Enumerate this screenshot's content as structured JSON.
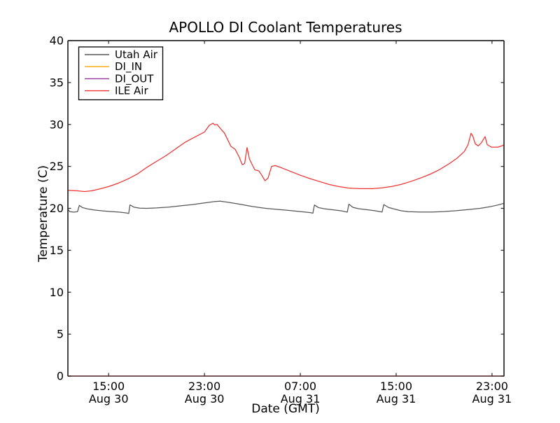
{
  "chart_data": {
    "type": "line",
    "title": "APOLLO DI Coolant Temperatures",
    "xlabel": "Date (GMT)",
    "ylabel": "Temperature (C)",
    "grid": false,
    "legend_position": "upper-left",
    "x_unit": "hours since Aug 30 00:00 GMT",
    "xlim": [
      11.6,
      48.0
    ],
    "ylim": [
      0,
      40
    ],
    "yticks": [
      0,
      5,
      10,
      15,
      20,
      25,
      30,
      35,
      40
    ],
    "xticks": [
      {
        "t": 15,
        "time": "15:00",
        "date": "Aug 30"
      },
      {
        "t": 23,
        "time": "23:00",
        "date": "Aug 30"
      },
      {
        "t": 31,
        "time": "07:00",
        "date": "Aug 31"
      },
      {
        "t": 39,
        "time": "15:00",
        "date": "Aug 31"
      },
      {
        "t": 47,
        "time": "23:00",
        "date": "Aug 31"
      }
    ],
    "series": [
      {
        "name": "Utah Air",
        "color": "#565656",
        "points": [
          [
            11.6,
            19.9
          ],
          [
            11.75,
            19.6
          ],
          [
            12.1,
            19.55
          ],
          [
            12.4,
            19.6
          ],
          [
            12.55,
            20.35
          ],
          [
            12.8,
            20.1
          ],
          [
            13.2,
            19.95
          ],
          [
            13.8,
            19.8
          ],
          [
            14.5,
            19.7
          ],
          [
            15.2,
            19.62
          ],
          [
            15.9,
            19.55
          ],
          [
            16.5,
            19.45
          ],
          [
            16.68,
            19.4
          ],
          [
            16.78,
            20.42
          ],
          [
            17.1,
            20.15
          ],
          [
            17.6,
            20.02
          ],
          [
            18.2,
            20.0
          ],
          [
            19.0,
            20.05
          ],
          [
            20.0,
            20.15
          ],
          [
            21.0,
            20.3
          ],
          [
            22.0,
            20.45
          ],
          [
            23.0,
            20.65
          ],
          [
            23.8,
            20.8
          ],
          [
            24.3,
            20.85
          ],
          [
            25.0,
            20.72
          ],
          [
            26.0,
            20.48
          ],
          [
            27.0,
            20.22
          ],
          [
            28.0,
            20.02
          ],
          [
            29.0,
            19.88
          ],
          [
            30.0,
            19.76
          ],
          [
            31.0,
            19.62
          ],
          [
            31.8,
            19.5
          ],
          [
            32.05,
            19.42
          ],
          [
            32.18,
            20.4
          ],
          [
            32.5,
            20.1
          ],
          [
            33.0,
            19.95
          ],
          [
            33.8,
            19.82
          ],
          [
            34.5,
            19.68
          ],
          [
            34.92,
            19.55
          ],
          [
            35.05,
            20.5
          ],
          [
            35.4,
            20.12
          ],
          [
            35.9,
            19.95
          ],
          [
            36.6,
            19.83
          ],
          [
            37.3,
            19.7
          ],
          [
            37.82,
            19.56
          ],
          [
            37.97,
            20.45
          ],
          [
            38.35,
            20.12
          ],
          [
            38.85,
            19.92
          ],
          [
            39.4,
            19.72
          ],
          [
            40.0,
            19.6
          ],
          [
            41.0,
            19.56
          ],
          [
            42.0,
            19.56
          ],
          [
            43.0,
            19.62
          ],
          [
            44.0,
            19.72
          ],
          [
            45.0,
            19.85
          ],
          [
            46.0,
            20.0
          ],
          [
            46.8,
            20.18
          ],
          [
            47.5,
            20.4
          ],
          [
            48.0,
            20.6
          ]
        ]
      },
      {
        "name": "DI_IN",
        "color": "#ffa500",
        "note": "lies flat on the 0 baseline (visible only as tint on bottom spine)",
        "points": [
          [
            11.6,
            0
          ],
          [
            48.0,
            0
          ]
        ]
      },
      {
        "name": "DI_OUT",
        "color": "#993399",
        "note": "lies flat on the 0 baseline (visible only as tint on bottom spine)",
        "points": [
          [
            11.6,
            0
          ],
          [
            48.0,
            0
          ]
        ]
      },
      {
        "name": "ILE Air",
        "color": "#ee3333",
        "points": [
          [
            11.6,
            22.15
          ],
          [
            12.3,
            22.1
          ],
          [
            13.0,
            22.0
          ],
          [
            13.6,
            22.1
          ],
          [
            14.2,
            22.3
          ],
          [
            15.0,
            22.6
          ],
          [
            15.8,
            23.0
          ],
          [
            16.6,
            23.5
          ],
          [
            17.4,
            24.1
          ],
          [
            18.2,
            24.9
          ],
          [
            19.0,
            25.6
          ],
          [
            19.8,
            26.3
          ],
          [
            20.6,
            27.1
          ],
          [
            21.4,
            27.9
          ],
          [
            22.2,
            28.5
          ],
          [
            23.0,
            29.1
          ],
          [
            23.4,
            29.9
          ],
          [
            23.7,
            30.15
          ],
          [
            23.85,
            29.95
          ],
          [
            24.05,
            30.0
          ],
          [
            24.4,
            29.4
          ],
          [
            24.65,
            29.0
          ],
          [
            25.0,
            28.0
          ],
          [
            25.2,
            27.4
          ],
          [
            25.55,
            27.05
          ],
          [
            25.9,
            26.1
          ],
          [
            26.15,
            25.2
          ],
          [
            26.35,
            25.35
          ],
          [
            26.55,
            27.25
          ],
          [
            26.75,
            25.9
          ],
          [
            26.95,
            25.3
          ],
          [
            27.2,
            24.6
          ],
          [
            27.55,
            24.45
          ],
          [
            27.8,
            23.9
          ],
          [
            28.05,
            23.3
          ],
          [
            28.3,
            23.6
          ],
          [
            28.6,
            25.0
          ],
          [
            28.9,
            25.1
          ],
          [
            29.4,
            24.85
          ],
          [
            30.2,
            24.4
          ],
          [
            31.0,
            23.95
          ],
          [
            31.8,
            23.55
          ],
          [
            32.6,
            23.2
          ],
          [
            33.4,
            22.85
          ],
          [
            34.2,
            22.6
          ],
          [
            35.0,
            22.42
          ],
          [
            36.0,
            22.35
          ],
          [
            37.0,
            22.35
          ],
          [
            37.8,
            22.45
          ],
          [
            38.6,
            22.6
          ],
          [
            39.4,
            22.85
          ],
          [
            40.2,
            23.2
          ],
          [
            41.0,
            23.6
          ],
          [
            41.8,
            24.05
          ],
          [
            42.6,
            24.6
          ],
          [
            43.4,
            25.3
          ],
          [
            44.1,
            26.0
          ],
          [
            44.7,
            26.8
          ],
          [
            45.0,
            27.6
          ],
          [
            45.25,
            28.95
          ],
          [
            45.4,
            28.6
          ],
          [
            45.6,
            27.7
          ],
          [
            45.85,
            27.45
          ],
          [
            46.1,
            27.8
          ],
          [
            46.42,
            28.55
          ],
          [
            46.6,
            27.6
          ],
          [
            46.95,
            27.3
          ],
          [
            47.5,
            27.3
          ],
          [
            48.0,
            27.55
          ]
        ]
      }
    ]
  },
  "style": {
    "background": "#ffffff",
    "axis_color": "#262626",
    "baseline_blend_color": "#6b4750",
    "legend_border_color": "#000000",
    "tick_length": 4.5,
    "line_width": 1.25
  }
}
